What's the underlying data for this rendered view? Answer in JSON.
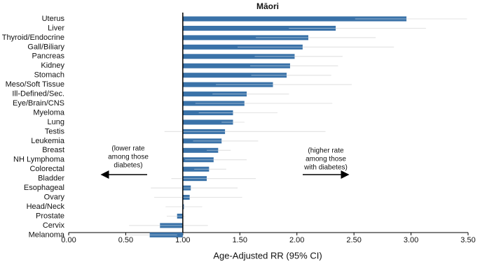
{
  "chart_data": {
    "type": "bar",
    "orientation": "horizontal",
    "title": "Māori",
    "categories": [
      "Uterus",
      "Liver",
      "Thyroid/Endocrine",
      "Gall/Biliary",
      "Pancreas",
      "Kidney",
      "Stomach",
      "Meso/Soft Tissue",
      "Ill-Defined/Sec.",
      "Eye/Brain/CNS",
      "Myeloma",
      "Lung",
      "Testis",
      "Leukemia",
      "Breast",
      "NH Lymphoma",
      "Colorectal",
      "Bladder",
      "Esophageal",
      "Ovary",
      "Head/Neck",
      "Prostate",
      "Cervix",
      "Melanoma"
    ],
    "values": [
      2.96,
      2.34,
      2.1,
      2.05,
      1.98,
      1.94,
      1.91,
      1.79,
      1.56,
      1.54,
      1.44,
      1.44,
      1.37,
      1.34,
      1.31,
      1.27,
      1.23,
      1.21,
      1.07,
      1.06,
      1.01,
      0.95,
      0.8,
      0.71
    ],
    "ci_lower": [
      2.51,
      1.93,
      1.64,
      1.48,
      1.63,
      1.59,
      1.6,
      1.29,
      1.26,
      1.11,
      1.14,
      1.34,
      0.84,
      1.09,
      1.21,
      1.02,
      1.1,
      0.9,
      0.72,
      0.75,
      0.85,
      0.86,
      0.53,
      0.51
    ],
    "ci_upper": [
      3.49,
      3.13,
      2.69,
      2.85,
      2.4,
      2.36,
      2.3,
      2.48,
      1.93,
      2.31,
      1.83,
      1.54,
      2.25,
      1.66,
      1.42,
      1.56,
      1.38,
      1.64,
      1.48,
      1.52,
      1.17,
      1.02,
      1.22,
      0.95
    ],
    "color": "#3a72a8",
    "ci_color": "#cccccc",
    "baseline": 1,
    "xlim": [
      0,
      3.5
    ],
    "xticks": [
      {
        "value": 0,
        "label": "0.00"
      },
      {
        "value": 0.5,
        "label": "0.50"
      },
      {
        "value": 1,
        "label": "1.00"
      },
      {
        "value": 1.5,
        "label": "1.50"
      },
      {
        "value": 2,
        "label": "2.00"
      },
      {
        "value": 2.5,
        "label": "2.50"
      },
      {
        "value": 3,
        "label": "3.00"
      },
      {
        "value": 3.5,
        "label": "3.50"
      }
    ],
    "xlabel": "Age-Adjusted RR (95% CI)",
    "annotations": [
      [
        "(lower rate",
        "among those",
        "diabetes)"
      ],
      [
        "(higher rate",
        "among those",
        "with diabetes)"
      ]
    ]
  }
}
